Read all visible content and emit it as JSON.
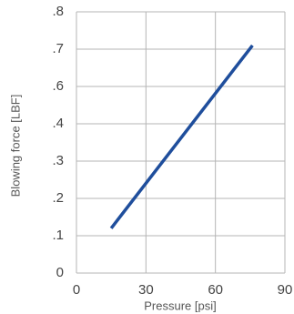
{
  "chart_data": {
    "type": "line",
    "x_label": "Pressure [psi]",
    "y_label": "Blowing force [LBF]",
    "x": [
      15,
      76
    ],
    "values": [
      0.12,
      0.71
    ],
    "color": "#1f4e9c",
    "xlim": [
      0,
      90
    ],
    "xticks": [
      0,
      30,
      60,
      90
    ],
    "ylim": [
      0,
      0.8
    ],
    "yticks": [
      0,
      {
        "value": 0.1,
        "label": ".1"
      },
      {
        "value": 0.2,
        "label": ".2"
      },
      {
        "value": 0.3,
        "label": ".3"
      },
      {
        "value": 0.4,
        "label": ".4"
      },
      {
        "value": 0.6,
        "label": ".6"
      },
      {
        "value": 0.7,
        "label": ".7"
      },
      {
        "value": 0.8,
        "label": ".8"
      }
    ],
    "grid": true
  }
}
